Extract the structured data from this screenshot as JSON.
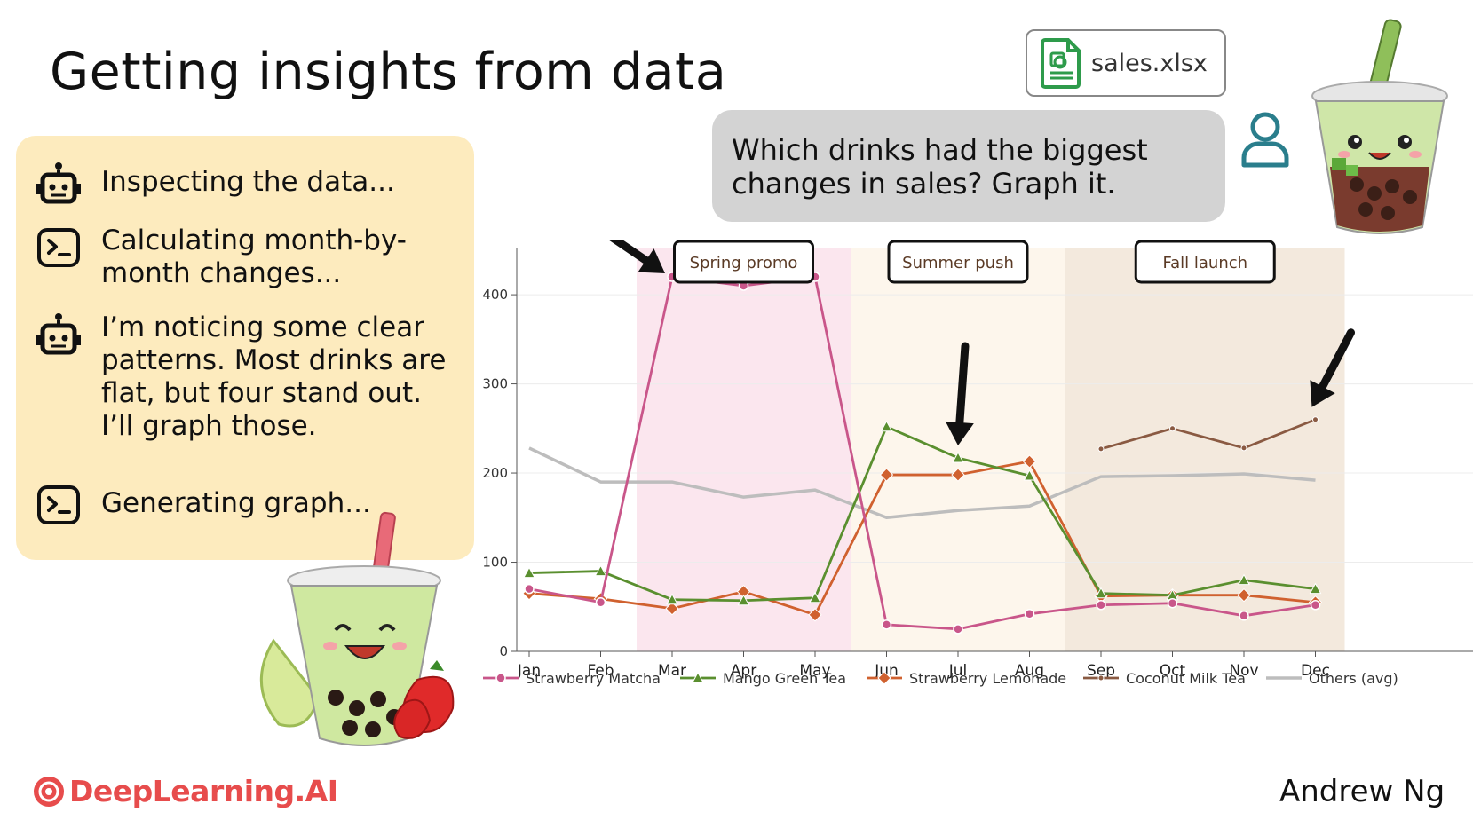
{
  "slide": {
    "title": "Getting insights from data",
    "file_name": "sales.xlsx",
    "prompt": "Which drinks had the biggest changes in sales? Graph it.",
    "author": "Andrew Ng",
    "brand": "DeepLearning.AI"
  },
  "steps": [
    {
      "icon": "robot-icon",
      "text": "Inspecting the data..."
    },
    {
      "icon": "terminal-icon",
      "text": "Calculating month-by-month changes..."
    },
    {
      "icon": "robot-icon",
      "text": "I’m noticing some clear patterns. Most drinks are flat, but four stand out. I’ll graph those."
    },
    {
      "icon": "terminal-icon",
      "text": "Generating graph..."
    }
  ],
  "chart_data": {
    "type": "line",
    "x": [
      "Jan",
      "Feb",
      "Mar",
      "Apr",
      "May",
      "Jun",
      "Jul",
      "Aug",
      "Sep",
      "Oct",
      "Nov",
      "Dec"
    ],
    "ylim": [
      0,
      420
    ],
    "yticks": [
      0,
      100,
      200,
      300,
      400
    ],
    "grid": true,
    "legend_placement": "bottom",
    "annotations": [
      {
        "label": "Spring promo",
        "from": "Mar",
        "to": "May",
        "color": "#fbe6ee"
      },
      {
        "label": "Summer push",
        "from": "Jun",
        "to": "Aug",
        "color": "#fdf6ec"
      },
      {
        "label": "Fall launch",
        "from": "Sep",
        "to": "Dec",
        "color": "#f3e9dd"
      }
    ],
    "arrows_point_to": [
      {
        "series": "Strawberry Matcha",
        "x": "Mar"
      },
      {
        "series": "Mango Green Tea",
        "x": "Jul"
      },
      {
        "series": "Coconut Milk Tea",
        "x": "Dec"
      }
    ],
    "series": [
      {
        "name": "Strawberry Matcha",
        "color": "#c9568a",
        "marker": "circle",
        "values": [
          70,
          55,
          420,
          410,
          420,
          30,
          25,
          42,
          52,
          54,
          40,
          52
        ]
      },
      {
        "name": "Mango Green Tea",
        "color": "#5a8f2f",
        "marker": "triangle",
        "values": [
          88,
          90,
          58,
          57,
          60,
          252,
          217,
          197,
          65,
          63,
          80,
          70
        ]
      },
      {
        "name": "Strawberry Lemonade",
        "color": "#d0612f",
        "marker": "diamond",
        "values": [
          65,
          59,
          48,
          67,
          41,
          198,
          198,
          213,
          62,
          63,
          63,
          55
        ]
      },
      {
        "name": "Coconut Milk Tea",
        "color": "#8a5a42",
        "marker": "dot",
        "values": [
          null,
          null,
          null,
          null,
          null,
          null,
          null,
          null,
          227,
          250,
          228,
          260
        ]
      },
      {
        "name": "Others (avg)",
        "color": "#bdbdbd",
        "marker": "none",
        "values": [
          228,
          190,
          190,
          173,
          181,
          150,
          158,
          163,
          196,
          197,
          199,
          192
        ]
      }
    ]
  }
}
